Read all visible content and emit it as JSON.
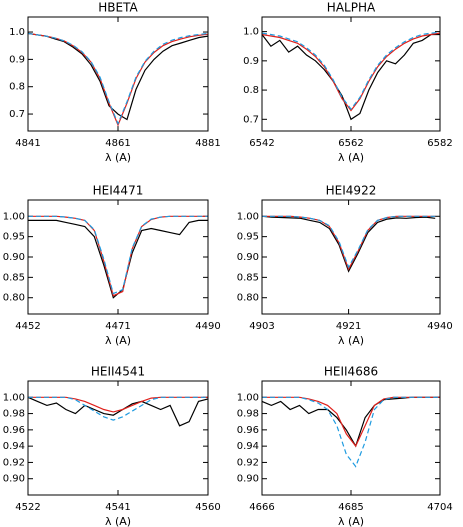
{
  "chart_data": [
    {
      "type": "line",
      "title": "HBETA",
      "x_label": "λ (A)",
      "xlim": [
        4841,
        4881
      ],
      "xticks": [
        4841,
        4861,
        4881
      ],
      "ylim": [
        0.638,
        1.055
      ],
      "yticks": [
        0.7,
        0.8,
        0.9,
        {
          "value": 1.0,
          "label": "1.0"
        }
      ],
      "x": [
        4841,
        4843,
        4845,
        4847,
        4849,
        4851,
        4853,
        4855,
        4857,
        4859,
        4861,
        4863,
        4865,
        4867,
        4869,
        4871,
        4873,
        4875,
        4877,
        4879,
        4881
      ],
      "series": [
        {
          "color": "#000000",
          "values": [
            0.995,
            0.99,
            0.985,
            0.975,
            0.965,
            0.945,
            0.92,
            0.88,
            0.82,
            0.73,
            0.7,
            0.68,
            0.79,
            0.86,
            0.9,
            0.93,
            0.95,
            0.96,
            0.97,
            0.98,
            0.985
          ]
        },
        {
          "color": "#e0201b",
          "values": [
            0.995,
            0.99,
            0.985,
            0.978,
            0.968,
            0.95,
            0.925,
            0.89,
            0.83,
            0.74,
            0.66,
            0.74,
            0.83,
            0.89,
            0.925,
            0.95,
            0.965,
            0.975,
            0.983,
            0.988,
            0.992
          ]
        },
        {
          "color": "#1e9be0",
          "dashed": true,
          "values": [
            0.995,
            0.99,
            0.985,
            0.978,
            0.968,
            0.952,
            0.928,
            0.892,
            0.835,
            0.745,
            0.665,
            0.745,
            0.835,
            0.893,
            0.93,
            0.955,
            0.97,
            0.98,
            0.987,
            0.991,
            0.995
          ]
        }
      ]
    },
    {
      "type": "line",
      "title": "HALPHA",
      "x_label": "λ (A)",
      "xlim": [
        6542,
        6582
      ],
      "xticks": [
        6542,
        6562,
        6582
      ],
      "ylim": [
        0.66,
        1.05
      ],
      "yticks": [
        0.7,
        0.8,
        0.9,
        {
          "value": 1.0,
          "label": "1.0"
        }
      ],
      "x": [
        6542,
        6544,
        6546,
        6548,
        6550,
        6552,
        6554,
        6556,
        6558,
        6560,
        6562,
        6564,
        6566,
        6568,
        6570,
        6572,
        6574,
        6576,
        6578,
        6580,
        6582
      ],
      "series": [
        {
          "color": "#000000",
          "values": [
            0.99,
            0.95,
            0.97,
            0.93,
            0.95,
            0.92,
            0.9,
            0.87,
            0.83,
            0.78,
            0.7,
            0.72,
            0.8,
            0.86,
            0.9,
            0.89,
            0.92,
            0.96,
            0.97,
            0.99,
            0.99
          ]
        },
        {
          "color": "#e0201b",
          "values": [
            0.99,
            0.985,
            0.98,
            0.97,
            0.96,
            0.94,
            0.915,
            0.88,
            0.83,
            0.77,
            0.73,
            0.77,
            0.83,
            0.88,
            0.915,
            0.94,
            0.96,
            0.975,
            0.985,
            0.99,
            0.995
          ]
        },
        {
          "color": "#1e9be0",
          "dashed": true,
          "values": [
            0.995,
            0.99,
            0.985,
            0.975,
            0.965,
            0.945,
            0.92,
            0.885,
            0.835,
            0.775,
            0.735,
            0.775,
            0.835,
            0.885,
            0.92,
            0.945,
            0.965,
            0.98,
            0.99,
            0.995,
            0.998
          ]
        }
      ]
    },
    {
      "type": "line",
      "title": "HEI4471",
      "x_label": "λ (A)",
      "xlim": [
        4452,
        4490
      ],
      "xticks": [
        4452,
        4471,
        4490
      ],
      "ylim": [
        0.76,
        1.04
      ],
      "yticks": [
        {
          "value": 0.8,
          "label": "0.80"
        },
        0.85,
        {
          "value": 0.9,
          "label": "0.90"
        },
        0.95,
        {
          "value": 1.0,
          "label": "1.00"
        }
      ],
      "x": [
        4452,
        4454,
        4456,
        4458,
        4460,
        4462,
        4464,
        4466,
        4468,
        4470,
        4472,
        4474,
        4476,
        4478,
        4480,
        4482,
        4484,
        4486,
        4488,
        4490
      ],
      "series": [
        {
          "color": "#000000",
          "values": [
            0.99,
            0.99,
            0.99,
            0.99,
            0.985,
            0.98,
            0.975,
            0.95,
            0.88,
            0.8,
            0.82,
            0.91,
            0.965,
            0.97,
            0.965,
            0.96,
            0.955,
            0.985,
            0.99,
            0.99
          ]
        },
        {
          "color": "#e0201b",
          "values": [
            1.0,
            1.0,
            1.0,
            1.0,
            0.998,
            0.995,
            0.99,
            0.965,
            0.89,
            0.805,
            0.815,
            0.92,
            0.975,
            0.992,
            0.998,
            1.0,
            1.0,
            1.0,
            1.0,
            1.0
          ]
        },
        {
          "color": "#1e9be0",
          "dashed": true,
          "values": [
            1.0,
            1.0,
            1.0,
            1.0,
            0.998,
            0.995,
            0.99,
            0.967,
            0.895,
            0.81,
            0.82,
            0.922,
            0.976,
            0.993,
            0.998,
            1.0,
            1.0,
            1.0,
            1.0,
            1.0
          ]
        }
      ]
    },
    {
      "type": "line",
      "title": "HEI4922",
      "x_label": "λ (A)",
      "xlim": [
        4903,
        4940
      ],
      "xticks": [
        4903,
        4921,
        4940
      ],
      "ylim": [
        0.76,
        1.04
      ],
      "yticks": [
        {
          "value": 0.8,
          "label": "0.80"
        },
        0.85,
        {
          "value": 0.9,
          "label": "0.90"
        },
        0.95,
        {
          "value": 1.0,
          "label": "1.00"
        }
      ],
      "x": [
        4903,
        4905,
        4907,
        4909,
        4911,
        4913,
        4915,
        4917,
        4919,
        4921,
        4923,
        4925,
        4927,
        4929,
        4931,
        4933,
        4935,
        4937,
        4939
      ],
      "series": [
        {
          "color": "#000000",
          "values": [
            1.0,
            0.998,
            0.997,
            0.996,
            0.995,
            0.99,
            0.985,
            0.97,
            0.93,
            0.865,
            0.91,
            0.96,
            0.985,
            0.993,
            0.996,
            0.995,
            0.997,
            0.998,
            0.995
          ]
        },
        {
          "color": "#e0201b",
          "values": [
            1.0,
            1.0,
            1.0,
            1.0,
            0.998,
            0.995,
            0.99,
            0.975,
            0.935,
            0.87,
            0.915,
            0.965,
            0.99,
            0.997,
            1.0,
            1.0,
            1.0,
            1.0,
            1.0
          ]
        },
        {
          "color": "#1e9be0",
          "dashed": true,
          "values": [
            1.0,
            1.0,
            1.0,
            1.0,
            0.998,
            0.995,
            0.99,
            0.977,
            0.938,
            0.875,
            0.918,
            0.967,
            0.99,
            0.997,
            1.0,
            1.0,
            1.0,
            1.0,
            1.0
          ]
        }
      ]
    },
    {
      "type": "line",
      "title": "HEII4541",
      "x_label": "λ (A)",
      "xlim": [
        4522,
        4560
      ],
      "xticks": [
        4522,
        4541,
        4560
      ],
      "ylim": [
        0.88,
        1.02
      ],
      "yticks": [
        {
          "value": 0.9,
          "label": "0.90"
        },
        0.92,
        0.94,
        0.96,
        0.98,
        {
          "value": 1.0,
          "label": "1.00"
        }
      ],
      "x": [
        4522,
        4524,
        4526,
        4528,
        4530,
        4532,
        4534,
        4536,
        4538,
        4540,
        4542,
        4544,
        4546,
        4548,
        4550,
        4552,
        4554,
        4556,
        4558,
        4560
      ],
      "series": [
        {
          "color": "#000000",
          "values": [
            1.0,
            0.995,
            0.99,
            0.993,
            0.985,
            0.98,
            0.99,
            0.985,
            0.98,
            0.978,
            0.985,
            0.992,
            0.995,
            0.99,
            0.985,
            0.99,
            0.965,
            0.97,
            0.995,
            0.998
          ]
        },
        {
          "color": "#e0201b",
          "values": [
            1.0,
            1.0,
            1.0,
            1.0,
            1.0,
            0.998,
            0.995,
            0.99,
            0.985,
            0.982,
            0.985,
            0.99,
            0.995,
            0.999,
            1.0,
            1.0,
            1.0,
            1.0,
            1.0,
            1.0
          ]
        },
        {
          "color": "#1e9be0",
          "dashed": true,
          "values": [
            1.0,
            1.0,
            1.0,
            1.0,
            1.0,
            0.997,
            0.99,
            0.983,
            0.976,
            0.972,
            0.976,
            0.983,
            0.99,
            0.997,
            1.0,
            1.0,
            1.0,
            1.0,
            1.0,
            1.0
          ]
        }
      ]
    },
    {
      "type": "line",
      "title": "HEII4686",
      "x_label": "λ (A)",
      "xlim": [
        4666,
        4704
      ],
      "xticks": [
        4666,
        4685,
        4704
      ],
      "ylim": [
        0.88,
        1.02
      ],
      "yticks": [
        {
          "value": 0.9,
          "label": "0.90"
        },
        0.92,
        0.94,
        0.96,
        0.98,
        {
          "value": 1.0,
          "label": "1.00"
        }
      ],
      "x": [
        4666,
        4668,
        4670,
        4672,
        4674,
        4676,
        4678,
        4680,
        4682,
        4684,
        4686,
        4688,
        4690,
        4692,
        4694,
        4696,
        4698,
        4700,
        4702,
        4704
      ],
      "series": [
        {
          "color": "#000000",
          "values": [
            0.995,
            0.99,
            0.995,
            0.985,
            0.99,
            0.98,
            0.985,
            0.985,
            0.975,
            0.96,
            0.94,
            0.975,
            0.99,
            0.997,
            0.998,
            0.999,
            1.0,
            1.0,
            1.0,
            1.0
          ]
        },
        {
          "color": "#e0201b",
          "values": [
            1.0,
            1.0,
            1.0,
            1.0,
            1.0,
            0.998,
            0.995,
            0.99,
            0.98,
            0.955,
            0.94,
            0.965,
            0.99,
            0.998,
            1.0,
            1.0,
            1.0,
            1.0,
            1.0,
            1.0
          ]
        },
        {
          "color": "#1e9be0",
          "dashed": true,
          "values": [
            1.0,
            1.0,
            1.0,
            1.0,
            1.0,
            0.997,
            0.993,
            0.985,
            0.965,
            0.93,
            0.915,
            0.945,
            0.985,
            0.997,
            1.0,
            1.0,
            1.0,
            1.0,
            1.0,
            1.0
          ]
        }
      ]
    }
  ]
}
